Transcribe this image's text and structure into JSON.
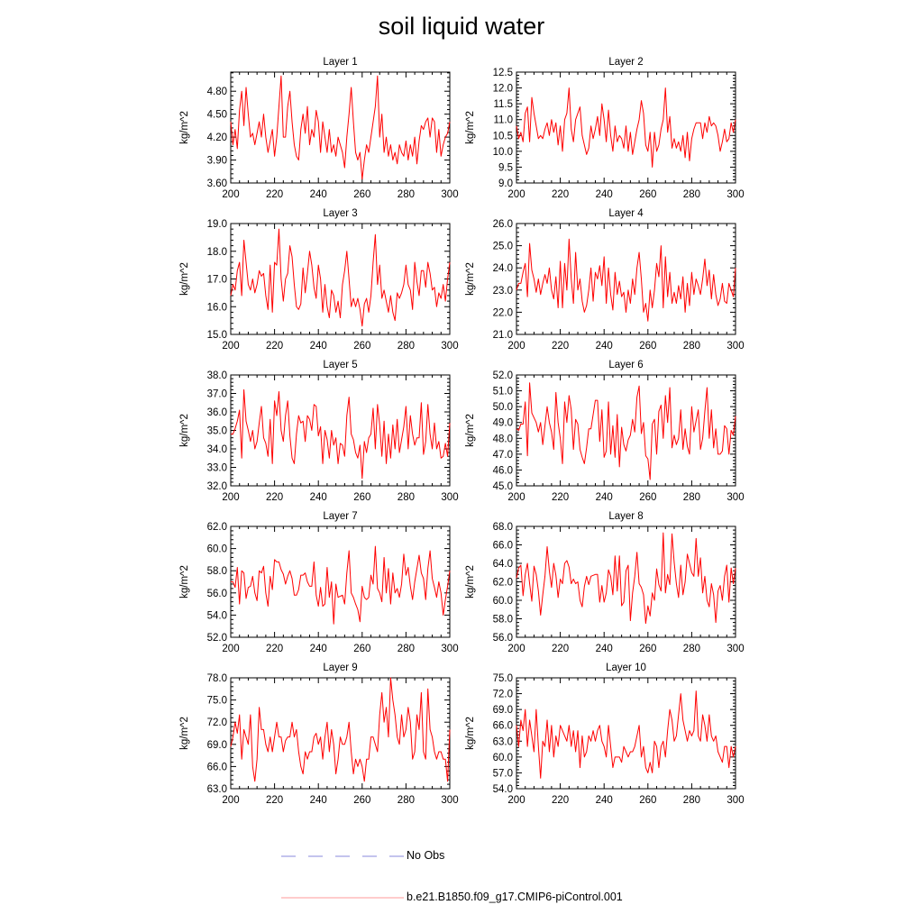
{
  "title": "soil liquid water",
  "legend": {
    "obs_label": "No Obs",
    "model_label": "b.e21.B1850.f09_g17.CMIP6-piControl.001",
    "obs_color": "#8888dd",
    "model_color": "#ff0000"
  },
  "chart_data": [
    {
      "type": "line",
      "title": "Layer 1",
      "ylabel": "kg/m^2",
      "xlim": [
        200,
        300
      ],
      "ylim": [
        3.6,
        5.05
      ],
      "xticks": [
        "200",
        "220",
        "240",
        "260",
        "280",
        "300"
      ],
      "yticks": [
        "3.60",
        "3.90",
        "4.20",
        "4.50",
        "4.80"
      ],
      "x_start": 200,
      "x_step": 1,
      "values": [
        4.4,
        4.1,
        4.3,
        4.05,
        4.55,
        4.8,
        4.35,
        4.85,
        4.5,
        4.2,
        4.25,
        4.1,
        4.25,
        4.4,
        4.2,
        4.5,
        4.2,
        4.0,
        4.15,
        4.3,
        3.95,
        4.2,
        4.6,
        5.0,
        4.2,
        4.2,
        4.6,
        4.8,
        4.4,
        4.1,
        3.95,
        3.9,
        4.3,
        4.5,
        4.25,
        4.6,
        4.1,
        4.3,
        4.2,
        4.55,
        4.4,
        4.0,
        4.4,
        4.2,
        4.0,
        4.3,
        4.0,
        4.1,
        3.95,
        4.2,
        4.1,
        4.0,
        3.8,
        4.2,
        4.5,
        4.85,
        4.4,
        4.0,
        3.9,
        4.0,
        3.65,
        3.9,
        4.1,
        4.0,
        4.2,
        4.4,
        4.6,
        5.0,
        4.2,
        4.5,
        4.0,
        4.2,
        3.95,
        4.1,
        3.9,
        4.0,
        3.85,
        4.1,
        4.0,
        3.95,
        4.15,
        3.9,
        4.1,
        3.95,
        4.2,
        3.85,
        4.15,
        4.35,
        4.3,
        4.4,
        4.45,
        4.2,
        4.45,
        4.4,
        4.0,
        4.3,
        3.95,
        4.1,
        4.2,
        4.25,
        4.4
      ]
    },
    {
      "type": "line",
      "title": "Layer 2",
      "ylabel": "kg/m^2",
      "xlim": [
        200,
        300
      ],
      "ylim": [
        9.0,
        12.5
      ],
      "xticks": [
        "200",
        "220",
        "240",
        "260",
        "280",
        "300"
      ],
      "yticks": [
        "9.0",
        "9.5",
        "10.0",
        "10.5",
        "11.0",
        "11.5",
        "12.0",
        "12.5"
      ],
      "x_start": 200,
      "x_step": 1,
      "values": [
        10.8,
        10.4,
        10.6,
        10.3,
        11.2,
        11.4,
        10.3,
        11.7,
        11.2,
        10.8,
        10.4,
        10.5,
        10.4,
        10.7,
        10.9,
        10.5,
        11.0,
        10.6,
        10.9,
        10.2,
        10.8,
        10.0,
        11.0,
        11.2,
        12.0,
        10.7,
        10.3,
        11.0,
        11.2,
        11.4,
        10.5,
        10.2,
        9.9,
        10.1,
        10.8,
        10.4,
        10.7,
        11.1,
        10.5,
        11.5,
        11.0,
        10.3,
        11.3,
        10.5,
        10.0,
        10.8,
        10.3,
        10.5,
        10.4,
        10.1,
        10.8,
        10.0,
        10.6,
        9.9,
        10.3,
        10.7,
        11.0,
        11.6,
        11.2,
        10.2,
        10.0,
        10.6,
        9.5,
        10.6,
        10.0,
        10.2,
        10.7,
        11.0,
        12.0,
        10.6,
        11.1,
        10.1,
        10.4,
        10.1,
        10.3,
        10.0,
        10.5,
        9.8,
        10.6,
        9.7,
        10.4,
        10.7,
        10.9,
        10.9,
        10.9,
        10.4,
        10.9,
        10.6,
        11.1,
        10.8,
        10.9,
        10.8,
        10.5,
        10.0,
        10.3,
        10.7,
        10.3,
        10.4,
        10.9,
        10.6,
        11.0
      ]
    },
    {
      "type": "line",
      "title": "Layer 3",
      "ylabel": "kg/m^2",
      "xlim": [
        200,
        300
      ],
      "ylim": [
        15.0,
        19.0
      ],
      "xticks": [
        "200",
        "220",
        "240",
        "260",
        "280",
        "300"
      ],
      "yticks": [
        "15.0",
        "16.0",
        "17.0",
        "18.0",
        "19.0"
      ],
      "x_start": 200,
      "x_step": 1,
      "values": [
        16.4,
        16.8,
        16.6,
        17.3,
        17.6,
        16.4,
        18.4,
        17.6,
        16.8,
        16.6,
        17.0,
        16.5,
        16.8,
        17.3,
        17.1,
        17.2,
        16.4,
        15.9,
        17.5,
        15.8,
        17.6,
        17.5,
        18.8,
        17.0,
        16.2,
        17.0,
        17.2,
        18.2,
        17.8,
        16.8,
        16.0,
        15.9,
        16.1,
        17.4,
        16.5,
        17.2,
        18.0,
        17.5,
        16.7,
        16.3,
        17.5,
        17.0,
        15.8,
        16.8,
        16.0,
        15.6,
        16.6,
        16.4,
        15.8,
        16.2,
        15.6,
        16.8,
        17.3,
        18.0,
        17.0,
        16.0,
        16.3,
        16.0,
        16.3,
        15.9,
        15.3,
        16.1,
        16.3,
        15.8,
        16.4,
        17.6,
        18.6,
        16.8,
        17.5,
        16.3,
        16.6,
        16.2,
        15.8,
        16.4,
        15.8,
        15.5,
        16.5,
        16.3,
        16.5,
        16.8,
        17.5,
        16.8,
        16.6,
        15.9,
        17.6,
        16.9,
        16.4,
        17.3,
        17.3,
        16.7,
        17.6,
        17.2,
        16.6,
        16.7,
        16.0,
        16.5,
        16.3,
        16.8,
        16.2,
        17.0,
        17.6
      ]
    },
    {
      "type": "line",
      "title": "Layer 4",
      "ylabel": "kg/m^2",
      "xlim": [
        200,
        300
      ],
      "ylim": [
        21.0,
        26.0
      ],
      "xticks": [
        "200",
        "220",
        "240",
        "260",
        "280",
        "300"
      ],
      "yticks": [
        "21.0",
        "22.0",
        "23.0",
        "24.0",
        "25.0",
        "26.0"
      ],
      "x_start": 200,
      "x_step": 1,
      "values": [
        23.0,
        23.3,
        23.3,
        23.8,
        24.2,
        22.7,
        25.1,
        23.9,
        23.5,
        22.9,
        23.5,
        22.8,
        23.3,
        23.7,
        23.3,
        24.0,
        23.0,
        22.6,
        23.6,
        22.2,
        24.3,
        22.2,
        24.2,
        23.0,
        25.3,
        23.5,
        22.4,
        24.7,
        23.0,
        23.5,
        22.5,
        22.0,
        22.3,
        23.0,
        24.0,
        22.5,
        23.8,
        23.5,
        24.1,
        23.2,
        24.5,
        22.4,
        24.0,
        22.8,
        22.1,
        23.8,
        22.8,
        23.4,
        22.7,
        22.9,
        22.0,
        23.0,
        22.4,
        23.5,
        22.8,
        24.0,
        24.7,
        23.5,
        22.0,
        22.4,
        21.6,
        23.0,
        22.2,
        23.0,
        24.2,
        23.6,
        25.0,
        22.2,
        24.5,
        22.7,
        23.8,
        22.4,
        22.9,
        22.4,
        23.2,
        22.6,
        23.6,
        22.0,
        23.3,
        22.3,
        23.8,
        22.8,
        23.5,
        23.2,
        22.8,
        23.5,
        24.4,
        23.2,
        23.9,
        22.6,
        23.7,
        22.8,
        22.3,
        22.6,
        23.3,
        22.5,
        22.4,
        23.3,
        23.0,
        22.7,
        24.0
      ]
    },
    {
      "type": "line",
      "title": "Layer 5",
      "ylabel": "kg/m^2",
      "xlim": [
        200,
        300
      ],
      "ylim": [
        32.0,
        38.0
      ],
      "xticks": [
        "200",
        "220",
        "240",
        "260",
        "280",
        "300"
      ],
      "yticks": [
        "32.0",
        "33.0",
        "34.0",
        "35.0",
        "36.0",
        "37.0",
        "38.0"
      ],
      "x_start": 200,
      "x_step": 1,
      "values": [
        34.8,
        34.8,
        35.1,
        35.5,
        36.1,
        33.5,
        37.2,
        35.5,
        35.0,
        34.4,
        35.0,
        34.0,
        34.4,
        35.4,
        36.3,
        34.6,
        34.3,
        33.6,
        35.6,
        33.2,
        36.6,
        35.8,
        37.1,
        35.0,
        34.4,
        35.8,
        36.6,
        34.7,
        33.5,
        33.2,
        34.8,
        35.8,
        35.4,
        35.5,
        34.4,
        35.8,
        35.6,
        35.0,
        36.4,
        36.3,
        34.7,
        35.2,
        33.2,
        35.0,
        34.5,
        33.5,
        35.0,
        34.2,
        34.6,
        33.2,
        34.3,
        34.2,
        33.6,
        35.8,
        36.8,
        34.8,
        34.5,
        33.8,
        33.5,
        34.2,
        32.4,
        34.4,
        33.8,
        34.6,
        34.8,
        36.2,
        34.0,
        36.4,
        35.3,
        33.6,
        35.5,
        33.2,
        34.8,
        33.5,
        35.3,
        34.0,
        35.6,
        33.8,
        34.5,
        35.2,
        36.3,
        34.0,
        35.8,
        34.8,
        34.2,
        34.6,
        34.6,
        36.5,
        33.7,
        34.4,
        36.4,
        34.8,
        34.0,
        35.4,
        34.0,
        34.4,
        33.5,
        33.6,
        34.3,
        33.6,
        35.4
      ]
    },
    {
      "type": "line",
      "title": "Layer 6",
      "ylabel": "kg/m^2",
      "xlim": [
        200,
        300
      ],
      "ylim": [
        45.0,
        52.0
      ],
      "xticks": [
        "200",
        "220",
        "240",
        "260",
        "280",
        "300"
      ],
      "yticks": [
        "45.0",
        "46.0",
        "47.0",
        "48.0",
        "49.0",
        "50.0",
        "51.0",
        "52.0"
      ],
      "x_start": 200,
      "x_step": 1,
      "values": [
        48.6,
        48.5,
        48.9,
        48.9,
        50.3,
        46.9,
        51.5,
        49.6,
        49.3,
        49.0,
        48.4,
        49.0,
        47.6,
        48.8,
        50.0,
        49.0,
        48.4,
        47.3,
        50.9,
        49.0,
        48.0,
        46.4,
        50.3,
        49.0,
        50.7,
        49.8,
        47.3,
        49.2,
        48.9,
        47.3,
        46.8,
        46.4,
        47.4,
        48.6,
        48.6,
        49.5,
        50.4,
        50.4,
        47.8,
        49.8,
        46.8,
        47.2,
        50.3,
        47.0,
        48.8,
        46.8,
        49.5,
        46.2,
        48.7,
        47.6,
        47.2,
        47.9,
        48.2,
        49.2,
        48.4,
        50.6,
        51.3,
        48.3,
        49.0,
        46.9,
        46.7,
        45.4,
        48.9,
        49.2,
        47.0,
        49.7,
        50.1,
        48.0,
        50.7,
        49.0,
        51.2,
        47.4,
        48.2,
        47.6,
        48.0,
        49.8,
        47.3,
        48.6,
        47.5,
        47.0,
        50.0,
        48.4,
        49.1,
        49.8,
        47.3,
        48.0,
        49.7,
        51.2,
        48.0,
        49.8,
        47.4,
        48.6,
        47.0,
        47.0,
        47.2,
        48.8,
        48.6,
        47.0,
        48.5,
        48.2,
        49.4
      ]
    },
    {
      "type": "line",
      "title": "Layer 7",
      "ylabel": "kg/m^2",
      "xlim": [
        200,
        300
      ],
      "ylim": [
        52.0,
        62.0
      ],
      "xticks": [
        "200",
        "220",
        "240",
        "260",
        "280",
        "300"
      ],
      "yticks": [
        "52.0",
        "54.0",
        "56.0",
        "58.0",
        "60.0",
        "62.0"
      ],
      "x_start": 200,
      "x_step": 1,
      "values": [
        57.0,
        57.0,
        56.5,
        58.3,
        55.0,
        58.0,
        57.8,
        55.5,
        56.5,
        56.6,
        57.5,
        56.0,
        55.3,
        58.0,
        57.8,
        58.4,
        56.0,
        54.8,
        57.5,
        56.3,
        59.0,
        58.8,
        58.8,
        58.1,
        57.7,
        56.8,
        57.5,
        58.0,
        57.3,
        55.8,
        55.8,
        56.3,
        57.6,
        57.6,
        57.8,
        57.0,
        56.6,
        56.6,
        58.8,
        55.8,
        54.8,
        56.5,
        54.8,
        55.0,
        58.3,
        55.6,
        57.0,
        53.2,
        56.8,
        55.6,
        55.7,
        55.8,
        55.0,
        57.8,
        59.8,
        56.0,
        55.6,
        55.0,
        54.5,
        53.4,
        56.6,
        55.6,
        55.4,
        55.6,
        57.6,
        56.8,
        60.2,
        56.4,
        56.0,
        55.2,
        59.2,
        56.0,
        58.2,
        55.0,
        57.8,
        56.0,
        56.4,
        55.6,
        56.8,
        59.5,
        57.6,
        58.3,
        56.6,
        55.4,
        57.0,
        58.2,
        59.4,
        57.8,
        57.3,
        55.4,
        58.2,
        59.8,
        57.3,
        56.5,
        55.6,
        57.0,
        56.0,
        54.0,
        55.4,
        56.6,
        58.0
      ]
    },
    {
      "type": "line",
      "title": "Layer 8",
      "ylabel": "kg/m^2",
      "xlim": [
        200,
        300
      ],
      "ylim": [
        56.0,
        68.0
      ],
      "xticks": [
        "200",
        "220",
        "240",
        "260",
        "280",
        "300"
      ],
      "yticks": [
        "56.0",
        "58.0",
        "60.0",
        "62.0",
        "64.0",
        "66.0",
        "68.0"
      ],
      "x_start": 200,
      "x_step": 1,
      "values": [
        62.4,
        63.5,
        63.8,
        60.5,
        62.8,
        64.0,
        61.8,
        59.9,
        63.7,
        62.8,
        61.0,
        58.4,
        60.6,
        62.6,
        65.8,
        63.2,
        61.4,
        64.0,
        62.7,
        60.3,
        62.3,
        61.8,
        64.0,
        64.3,
        63.6,
        61.8,
        62.3,
        61.8,
        62.0,
        60.0,
        59.3,
        61.5,
        62.6,
        61.7,
        62.6,
        62.7,
        62.8,
        62.8,
        59.8,
        61.6,
        59.8,
        60.8,
        63.3,
        62.6,
        60.6,
        64.8,
        61.0,
        64.8,
        59.4,
        59.8,
        63.2,
        63.8,
        57.8,
        60.8,
        62.6,
        65.2,
        61.8,
        61.4,
        60.6,
        57.5,
        59.4,
        58.3,
        60.8,
        60.0,
        63.4,
        61.7,
        61.0,
        67.3,
        60.8,
        62.8,
        61.7,
        67.2,
        64.1,
        61.8,
        60.3,
        63.8,
        60.6,
        62.0,
        65.0,
        64.0,
        63.0,
        62.6,
        66.7,
        62.6,
        64.6,
        60.8,
        62.6,
        60.0,
        59.3,
        61.8,
        60.6,
        57.6,
        61.0,
        61.6,
        60.0,
        62.6,
        63.8,
        59.8,
        63.5,
        61.8,
        63.5
      ]
    },
    {
      "type": "line",
      "title": "Layer 9",
      "ylabel": "kg/m^2",
      "xlim": [
        200,
        300
      ],
      "ylim": [
        63.0,
        78.0
      ],
      "xticks": [
        "200",
        "220",
        "240",
        "260",
        "280",
        "300"
      ],
      "yticks": [
        "63.0",
        "66.0",
        "69.0",
        "72.0",
        "75.0",
        "78.0"
      ],
      "x_start": 200,
      "x_step": 1,
      "values": [
        68.7,
        70.0,
        72.0,
        70.5,
        73.0,
        67.0,
        71.0,
        70.0,
        69.0,
        73.0,
        66.0,
        64.0,
        67.0,
        74.0,
        71.0,
        71.0,
        69.0,
        68.0,
        70.0,
        68.0,
        70.0,
        72.0,
        70.0,
        70.0,
        68.0,
        69.5,
        70.0,
        70.0,
        72.0,
        70.0,
        71.0,
        68.0,
        66.0,
        65.0,
        68.0,
        67.0,
        68.0,
        68.0,
        70.0,
        70.5,
        69.0,
        70.0,
        67.0,
        70.0,
        72.0,
        68.0,
        71.0,
        69.0,
        65.0,
        67.0,
        70.0,
        69.0,
        69.0,
        70.0,
        72.0,
        68.0,
        65.0,
        67.0,
        66.0,
        67.0,
        66.0,
        64.0,
        67.0,
        67.0,
        70.0,
        70.0,
        69.0,
        68.0,
        73.0,
        76.0,
        72.0,
        74.0,
        70.0,
        78.0,
        75.0,
        73.0,
        70.0,
        69.0,
        73.0,
        70.0,
        71.0,
        74.0,
        72.0,
        67.0,
        68.0,
        73.0,
        71.0,
        76.0,
        68.0,
        67.0,
        76.5,
        71.0,
        70.0,
        68.0,
        67.0,
        68.0,
        68.0,
        67.0,
        67.0,
        64.0,
        71.0
      ]
    },
    {
      "type": "line",
      "title": "Layer 10",
      "ylabel": "kg/m^2",
      "xlim": [
        200,
        300
      ],
      "ylim": [
        54.0,
        75.0
      ],
      "xticks": [
        "200",
        "220",
        "240",
        "260",
        "280",
        "300"
      ],
      "yticks": [
        "54.0",
        "57.0",
        "60.0",
        "63.0",
        "66.0",
        "69.0",
        "72.0",
        "75.0"
      ],
      "x_start": 200,
      "x_step": 1,
      "values": [
        66.0,
        62.0,
        67.0,
        65.0,
        69.0,
        62.0,
        67.0,
        64.0,
        61.0,
        69.0,
        62.0,
        56.0,
        63.0,
        62.0,
        67.0,
        61.0,
        66.0,
        60.0,
        64.0,
        62.0,
        66.0,
        65.0,
        64.0,
        63.0,
        66.0,
        62.0,
        65.0,
        61.0,
        65.0,
        58.0,
        64.0,
        60.0,
        61.0,
        64.0,
        63.0,
        65.0,
        63.0,
        65.0,
        66.0,
        63.0,
        62.0,
        60.0,
        66.0,
        62.0,
        58.0,
        60.0,
        60.0,
        60.0,
        59.0,
        62.0,
        61.0,
        60.0,
        61.0,
        61.0,
        62.0,
        64.0,
        66.0,
        60.0,
        62.0,
        58.0,
        57.0,
        59.0,
        57.0,
        63.0,
        62.0,
        58.0,
        62.0,
        63.0,
        60.0,
        65.0,
        69.0,
        67.0,
        63.0,
        64.0,
        68.0,
        72.0,
        67.0,
        65.0,
        63.0,
        65.0,
        64.0,
        65.0,
        72.5,
        64.0,
        63.0,
        68.0,
        66.0,
        63.0,
        68.0,
        64.0,
        63.0,
        64.0,
        61.0,
        60.0,
        59.0,
        62.0,
        62.0,
        58.0,
        62.0,
        60.0,
        62.0
      ]
    }
  ]
}
